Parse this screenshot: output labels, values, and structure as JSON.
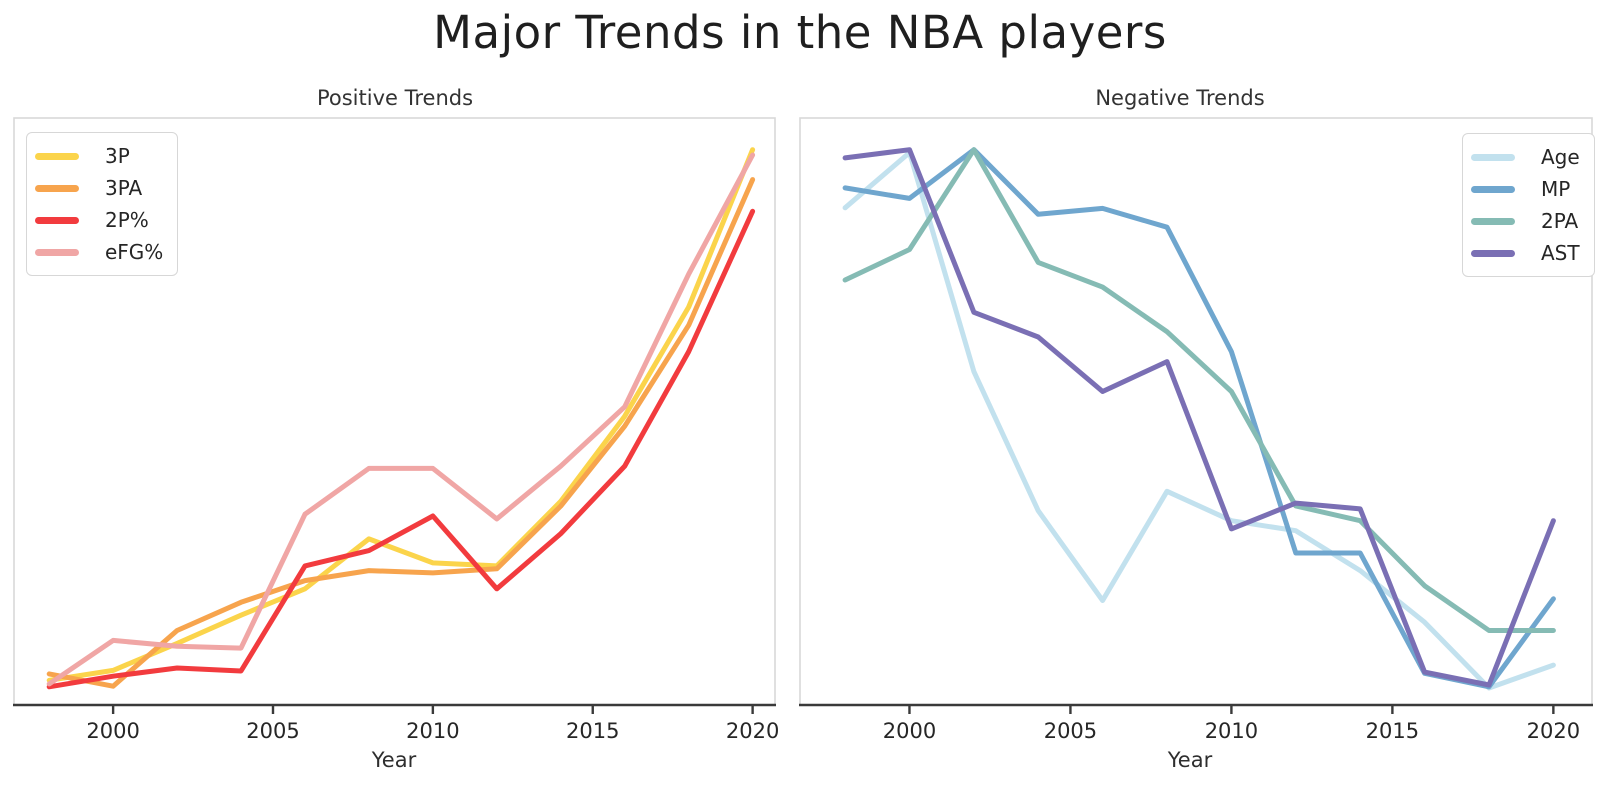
{
  "figure": {
    "title": "Major Trends in the NBA players",
    "background": "#ffffff"
  },
  "style": {
    "spine_color": "#d8d8d8",
    "axis_color": "#3a3a3a",
    "text_color": "#262626",
    "title_color": "#1f1f1f"
  },
  "chart_data": [
    {
      "type": "line",
      "title": "Positive Trends",
      "xlabel": "Year",
      "x": [
        1998,
        2000,
        2002,
        2004,
        2006,
        2008,
        2010,
        2012,
        2014,
        2016,
        2018,
        2020
      ],
      "x_ticks": [
        2000,
        2005,
        2010,
        2015,
        2020
      ],
      "xlim": [
        1996.9,
        2020.7
      ],
      "ylim": [
        0,
        1
      ],
      "y_axis_visible": false,
      "grid": false,
      "legend_position": "upper left",
      "series": [
        {
          "name": "3P",
          "color": "#FBD44B",
          "values": [
            0.042,
            0.059,
            0.105,
            0.153,
            0.198,
            0.283,
            0.242,
            0.237,
            0.347,
            0.492,
            0.678,
            0.946
          ]
        },
        {
          "name": "3PA",
          "color": "#F7A44D",
          "values": [
            0.053,
            0.032,
            0.127,
            0.175,
            0.212,
            0.229,
            0.225,
            0.232,
            0.339,
            0.475,
            0.647,
            0.895
          ]
        },
        {
          "name": "2P%",
          "color": "#F23B3E",
          "values": [
            0.031,
            0.049,
            0.063,
            0.058,
            0.237,
            0.263,
            0.322,
            0.198,
            0.292,
            0.407,
            0.602,
            0.841
          ]
        },
        {
          "name": "eFG%",
          "color": "#F0A6A5",
          "values": [
            0.036,
            0.11,
            0.1,
            0.097,
            0.325,
            0.403,
            0.403,
            0.317,
            0.407,
            0.508,
            0.734,
            0.937
          ]
        }
      ]
    },
    {
      "type": "line",
      "title": "Negative Trends",
      "xlabel": "Year",
      "x": [
        1998,
        2000,
        2002,
        2004,
        2006,
        2008,
        2010,
        2012,
        2014,
        2016,
        2018,
        2020
      ],
      "x_ticks": [
        2000,
        2005,
        2010,
        2015,
        2020
      ],
      "xlim": [
        1996.6,
        2021.2
      ],
      "ylim": [
        0,
        1
      ],
      "y_axis_visible": false,
      "grid": false,
      "legend_position": "upper right",
      "series": [
        {
          "name": "Age",
          "color": "#C2E1EE",
          "values": [
            0.847,
            0.941,
            0.568,
            0.331,
            0.178,
            0.364,
            0.314,
            0.297,
            0.229,
            0.141,
            0.029,
            0.068
          ]
        },
        {
          "name": "MP",
          "color": "#6FA6CE",
          "values": [
            0.881,
            0.863,
            0.946,
            0.836,
            0.846,
            0.814,
            0.602,
            0.259,
            0.259,
            0.054,
            0.031,
            0.181
          ]
        },
        {
          "name": "2PA",
          "color": "#85BBB4",
          "values": [
            0.724,
            0.776,
            0.946,
            0.754,
            0.712,
            0.636,
            0.534,
            0.339,
            0.314,
            0.203,
            0.127,
            0.127
          ]
        },
        {
          "name": "AST",
          "color": "#7A6FB4",
          "values": [
            0.932,
            0.946,
            0.669,
            0.627,
            0.534,
            0.585,
            0.3,
            0.344,
            0.334,
            0.056,
            0.034,
            0.314
          ]
        }
      ]
    }
  ]
}
